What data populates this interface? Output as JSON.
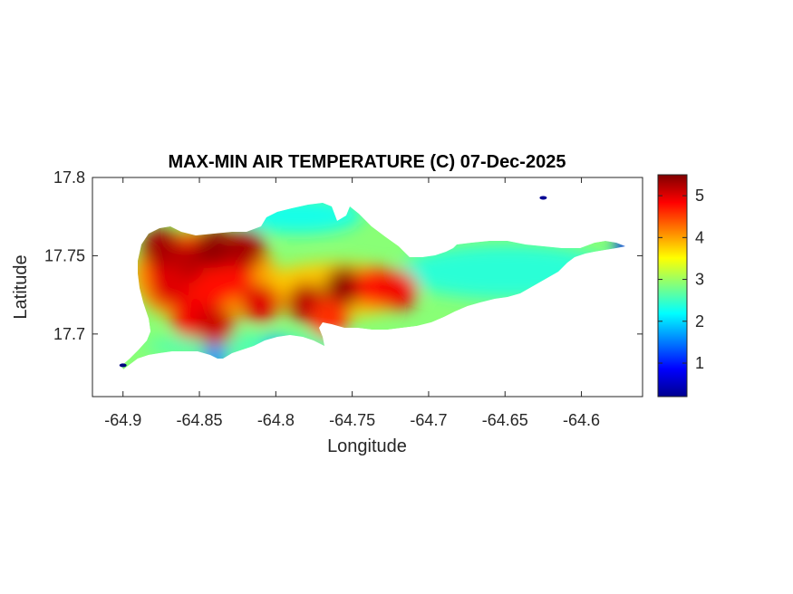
{
  "chart_data": {
    "type": "heatmap",
    "title": "MAX-MIN AIR TEMPERATURE (C) 07-Dec-2025",
    "xlabel": "Longitude",
    "ylabel": "Latitude",
    "xlim": [
      -64.92,
      -64.56
    ],
    "ylim": [
      17.66,
      17.8
    ],
    "xticks": [
      -64.9,
      -64.85,
      -64.8,
      -64.75,
      -64.7,
      -64.65,
      -64.6
    ],
    "xtick_labels": [
      "-64.9",
      "-64.85",
      "-64.8",
      "-64.75",
      "-64.7",
      "-64.65",
      "-64.6"
    ],
    "yticks": [
      17.7,
      17.75,
      17.8
    ],
    "ytick_labels": [
      "17.7",
      "17.75",
      "17.8"
    ],
    "colorbar": {
      "min": 0.2,
      "max": 5.5,
      "ticks": [
        1,
        2,
        3,
        4,
        5
      ],
      "tick_labels": [
        "1",
        "2",
        "3",
        "4",
        "5"
      ],
      "colormap": "jet"
    },
    "grid": false,
    "hotspots": [
      {
        "lon": -64.875,
        "lat": 17.755,
        "value": 5.3
      },
      {
        "lon": -64.86,
        "lat": 17.745,
        "value": 5.2
      },
      {
        "lon": -64.84,
        "lat": 17.755,
        "value": 5.4
      },
      {
        "lon": -64.82,
        "lat": 17.755,
        "value": 5.3
      },
      {
        "lon": -64.87,
        "lat": 17.73,
        "value": 5.0
      },
      {
        "lon": -64.855,
        "lat": 17.71,
        "value": 4.9
      },
      {
        "lon": -64.84,
        "lat": 17.705,
        "value": 5.1
      },
      {
        "lon": -64.81,
        "lat": 17.72,
        "value": 5.0
      },
      {
        "lon": -64.78,
        "lat": 17.72,
        "value": 5.2
      },
      {
        "lon": -64.755,
        "lat": 17.73,
        "value": 5.4
      },
      {
        "lon": -64.735,
        "lat": 17.73,
        "value": 4.8
      },
      {
        "lon": -64.765,
        "lat": 17.71,
        "value": 4.6
      },
      {
        "lon": -64.72,
        "lat": 17.728,
        "value": 4.9
      }
    ],
    "coldspots": [
      {
        "lon": -64.9,
        "lat": 17.68,
        "value": 0.2
      },
      {
        "lon": -64.625,
        "lat": 17.787,
        "value": 0.3
      },
      {
        "lon": -64.57,
        "lat": 17.755,
        "value": 1.0
      },
      {
        "lon": -64.84,
        "lat": 17.685,
        "value": 1.6
      },
      {
        "lon": -64.8,
        "lat": 17.69,
        "value": 1.7
      }
    ]
  }
}
